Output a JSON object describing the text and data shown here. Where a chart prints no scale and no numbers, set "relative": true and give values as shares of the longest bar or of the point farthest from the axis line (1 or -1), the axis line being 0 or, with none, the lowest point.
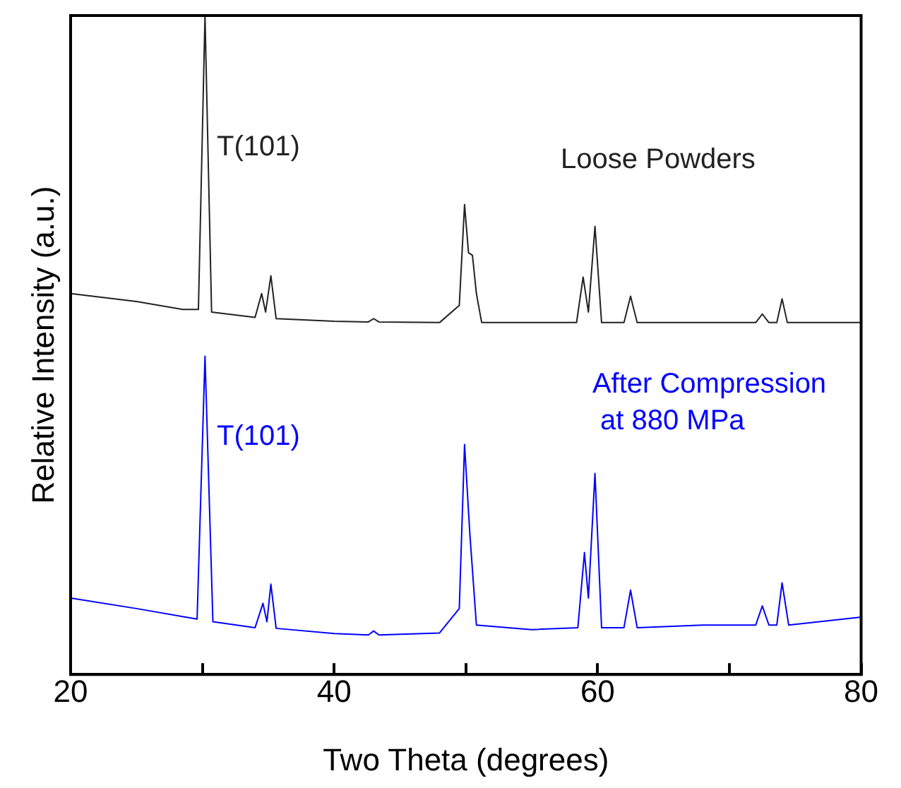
{
  "chart_data": {
    "type": "line",
    "xlabel": "Two Theta (degrees)",
    "ylabel": "Relative Intensity (a.u.)",
    "relative": true,
    "xlim": [
      20,
      80
    ],
    "xticks": [
      20,
      {
        "value": 30,
        "label": null
      },
      40,
      {
        "value": 50,
        "label": null
      },
      60,
      {
        "value": 70,
        "label": null
      },
      80
    ],
    "grid": false,
    "legend": false,
    "marker": "none",
    "line_style": "solid",
    "annotations": [
      "T(101)",
      "T(101)"
    ],
    "series": [
      {
        "name": "Loose Powders",
        "color": "#222222",
        "x": [
          20,
          25,
          28.5,
          29.7,
          30.2,
          30.7,
          34,
          34.5,
          34.8,
          35.2,
          35.6,
          40,
          42.6,
          43,
          43.4,
          48,
          49.5,
          49.9,
          50.2,
          50.5,
          50.8,
          51.2,
          55,
          58.4,
          58.9,
          59.3,
          59.8,
          60.3,
          62,
          62.5,
          63,
          68,
          72,
          72.5,
          73,
          73.6,
          74,
          74.4,
          80
        ],
        "values": [
          0.578,
          0.566,
          0.554,
          0.554,
          1,
          0.55,
          0.542,
          0.578,
          0.55,
          0.605,
          0.54,
          0.536,
          0.535,
          0.54,
          0.535,
          0.534,
          0.56,
          0.713,
          0.64,
          0.636,
          0.578,
          0.534,
          0.534,
          0.534,
          0.603,
          0.55,
          0.68,
          0.534,
          0.534,
          0.574,
          0.534,
          0.534,
          0.534,
          0.547,
          0.534,
          0.534,
          0.57,
          0.534,
          0.534
        ]
      },
      {
        "name": "After Compression\nat 880 MPa",
        "color": "#0000ff",
        "x": [
          20,
          25,
          29.6,
          30.2,
          30.8,
          34,
          34.6,
          34.9,
          35.2,
          35.6,
          40,
          42.6,
          43,
          43.4,
          48,
          49.5,
          49.9,
          50.3,
          50.8,
          55,
          58.5,
          59,
          59.3,
          59.8,
          60.3,
          62,
          62.5,
          63,
          68,
          72,
          72.5,
          73,
          73.6,
          74,
          74.5,
          80
        ],
        "values": [
          0.116,
          0.1,
          0.084,
          0.483,
          0.08,
          0.071,
          0.108,
          0.08,
          0.137,
          0.07,
          0.062,
          0.06,
          0.066,
          0.06,
          0.063,
          0.1,
          0.349,
          0.214,
          0.075,
          0.068,
          0.071,
          0.185,
          0.116,
          0.305,
          0.071,
          0.071,
          0.128,
          0.071,
          0.075,
          0.075,
          0.104,
          0.075,
          0.075,
          0.139,
          0.075,
          0.087
        ]
      }
    ]
  }
}
